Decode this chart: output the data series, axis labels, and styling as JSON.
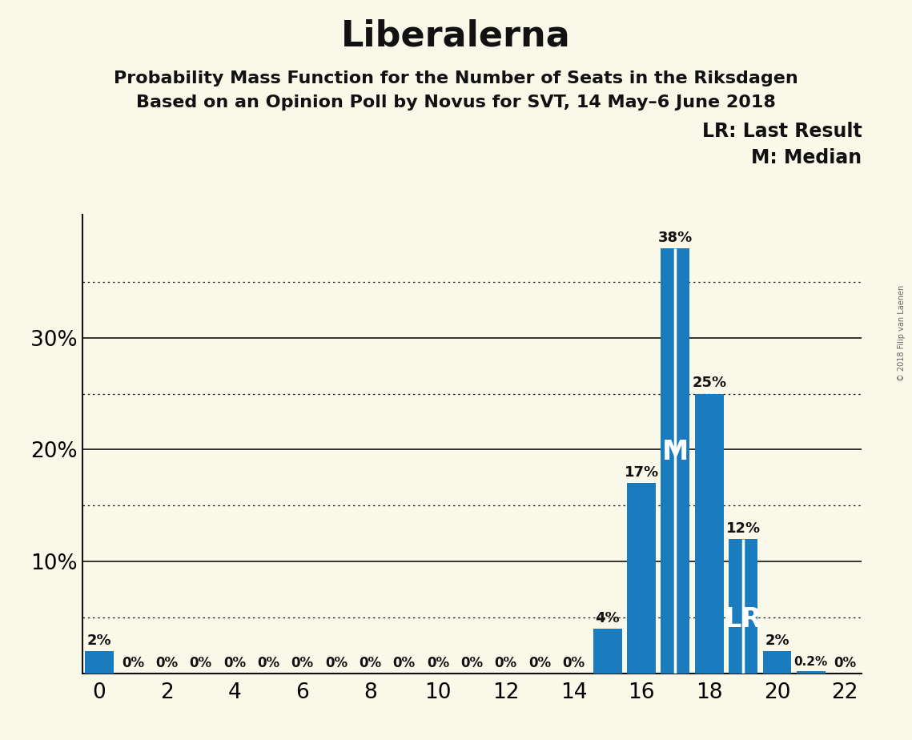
{
  "title": "Liberalerna",
  "subtitle1": "Probability Mass Function for the Number of Seats in the Riksdagen",
  "subtitle2": "Based on an Opinion Poll by Novus for SVT, 14 May–6 June 2018",
  "copyright": "© 2018 Filip van Laenen",
  "background_color": "#faf8e8",
  "bar_color": "#1a7bbf",
  "seats": [
    0,
    1,
    2,
    3,
    4,
    5,
    6,
    7,
    8,
    9,
    10,
    11,
    12,
    13,
    14,
    15,
    16,
    17,
    18,
    19,
    20,
    21,
    22
  ],
  "probabilities": [
    2,
    0,
    0,
    0,
    0,
    0,
    0,
    0,
    0,
    0,
    0,
    0,
    0,
    0,
    0,
    4,
    17,
    38,
    25,
    12,
    2,
    0.2,
    0
  ],
  "median_seat": 17,
  "lr_seat": 19,
  "xlim": [
    -0.5,
    22.5
  ],
  "ylim": [
    0,
    41
  ],
  "yticks": [
    0,
    5,
    10,
    15,
    20,
    25,
    30,
    35,
    40
  ],
  "ytick_labels": [
    "",
    "",
    "10%",
    "",
    "20%",
    "",
    "30%",
    "",
    ""
  ],
  "solid_yticks": [
    10,
    20,
    30
  ],
  "dotted_yticks": [
    5,
    15,
    25,
    35
  ],
  "xticks": [
    0,
    2,
    4,
    6,
    8,
    10,
    12,
    14,
    16,
    18,
    20,
    22
  ],
  "legend_lr": "LR: Last Result",
  "legend_m": "M: Median",
  "bar_width": 0.85,
  "title_fontsize": 32,
  "subtitle_fontsize": 16,
  "tick_fontsize": 19,
  "annotation_fontsize": 13,
  "marker_fontsize": 24,
  "legend_fontsize": 17
}
